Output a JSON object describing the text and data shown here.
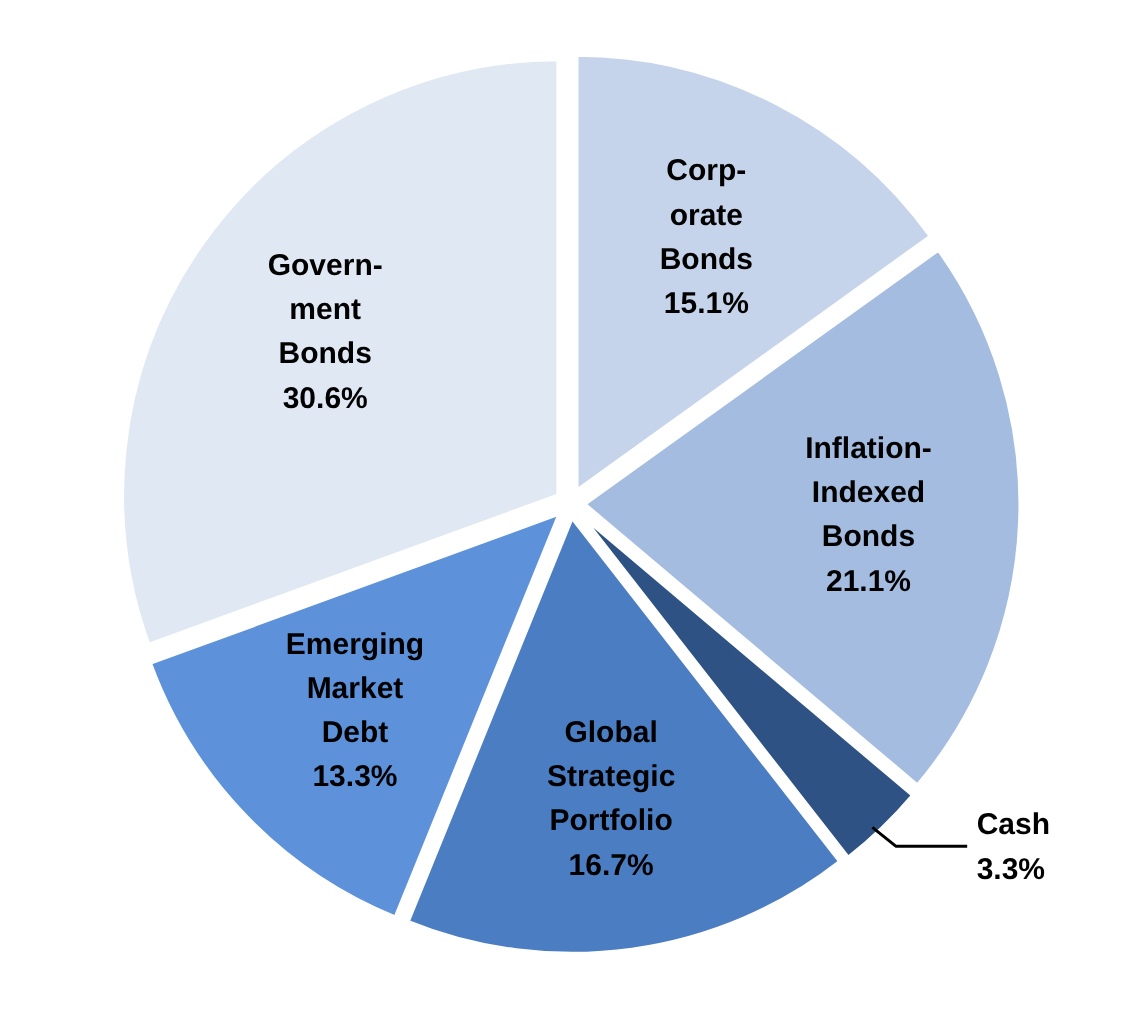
{
  "chart_data": {
    "type": "pie",
    "categories": [
      "Corp-\norate\nBonds",
      "Inflation-\nIndexed\nBonds",
      "Cash",
      "Global\nStrategic\nPortfolio",
      "Emerging\nMarket\nDebt",
      "Govern-\nment\nBonds"
    ],
    "values": [
      15.1,
      21.1,
      3.3,
      16.7,
      13.3,
      30.6
    ],
    "value_labels": [
      "15.1%",
      "21.1%",
      "3.3%",
      "16.7%",
      "13.3%",
      "30.6%"
    ],
    "colors": [
      "#c5d4ea",
      "#a3bce0",
      "#2d5283",
      "#4a7dc2",
      "#5d92da",
      "#e0e8f4"
    ]
  }
}
